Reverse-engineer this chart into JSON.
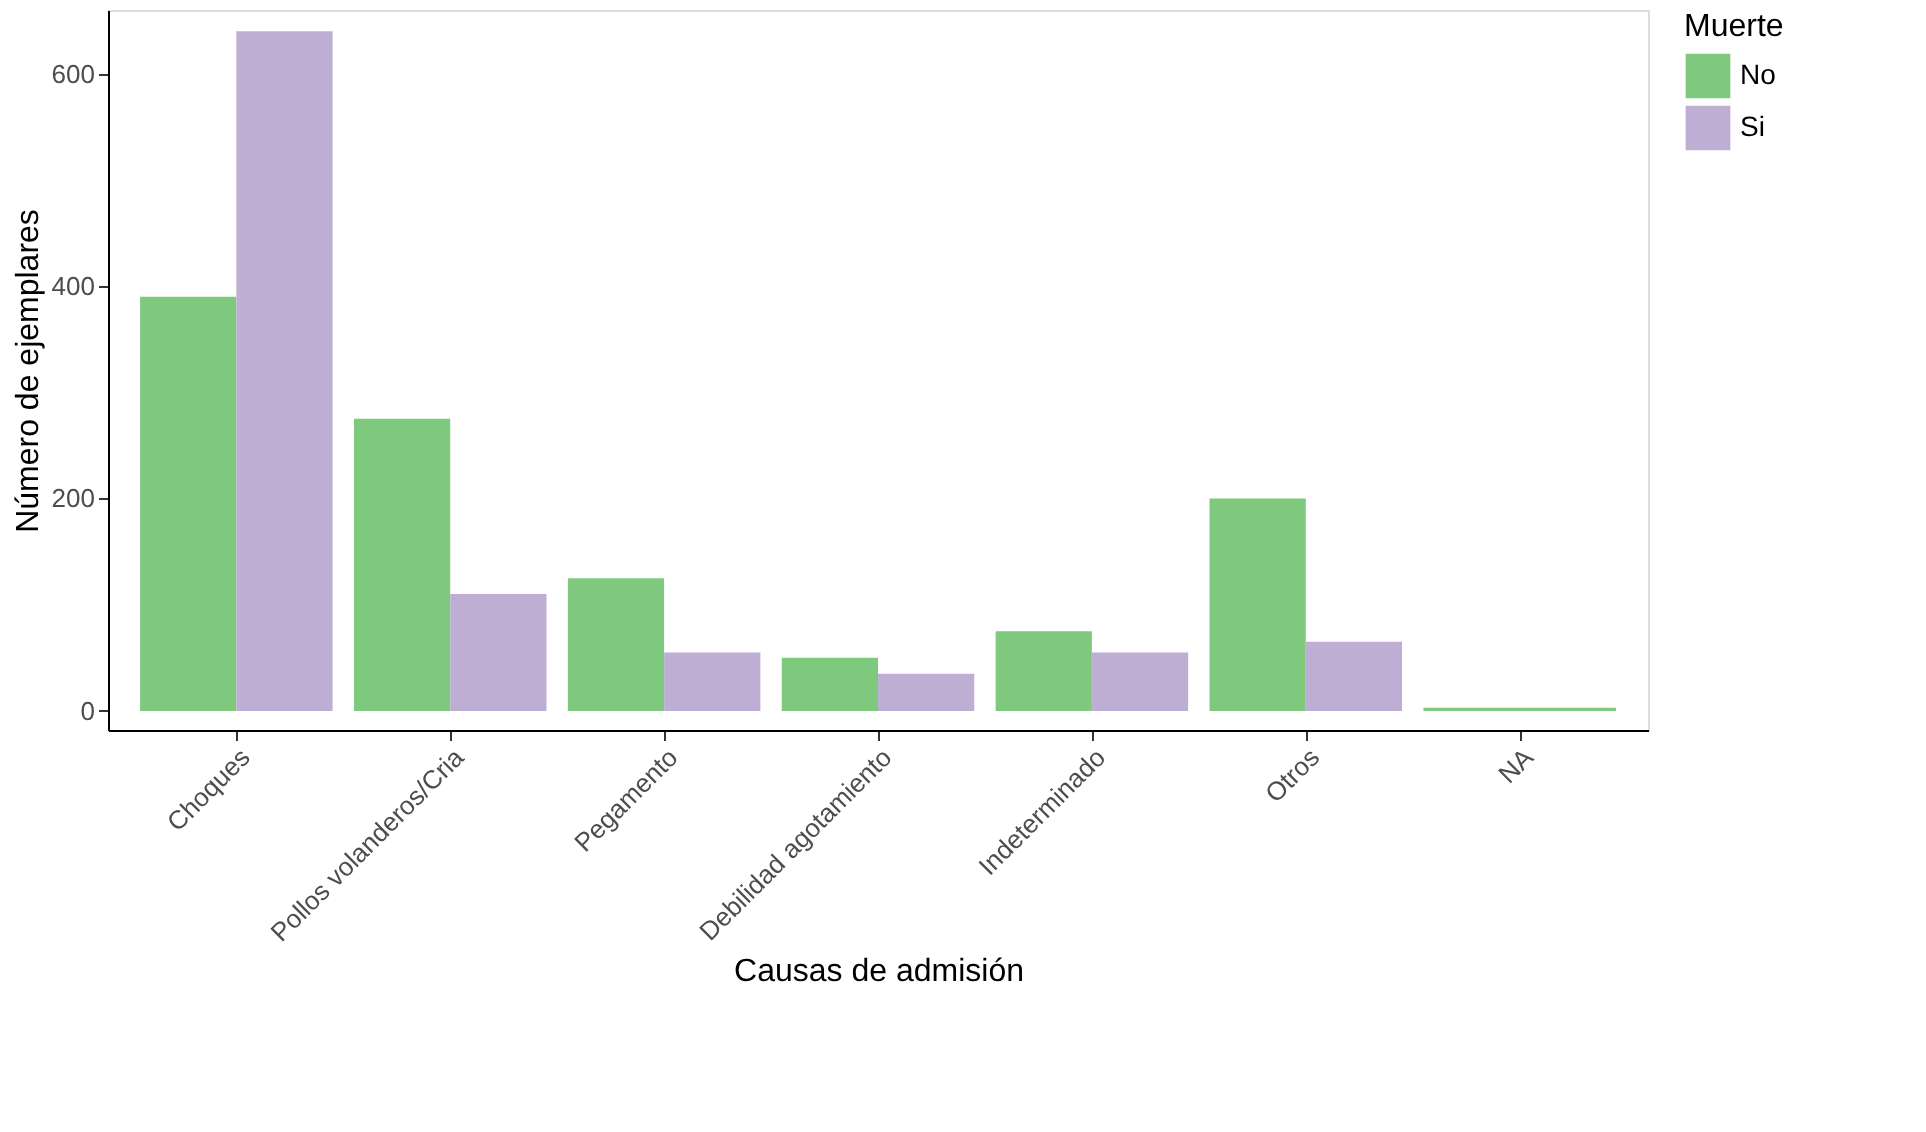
{
  "chart_data": {
    "type": "bar",
    "xlabel": "Causas de admisión",
    "ylabel": "Número de ejemplares",
    "legend_title": "Muerte",
    "categories": [
      "Choques",
      "Pollos volanderos/Cria",
      "Pegamento",
      "Debilidad agotamiento",
      "Indeterminado",
      "Otros",
      "NA"
    ],
    "series": [
      {
        "name": "No",
        "color": "#7fc97f",
        "values": [
          390,
          275,
          125,
          50,
          75,
          200,
          3
        ]
      },
      {
        "name": "Si",
        "color": "#beaed4",
        "values": [
          640,
          110,
          55,
          35,
          55,
          65,
          null
        ]
      }
    ],
    "ylim": [
      -18,
      660
    ],
    "yticks": [
      0,
      200,
      400,
      600
    ],
    "grid": false,
    "legend": "right"
  }
}
